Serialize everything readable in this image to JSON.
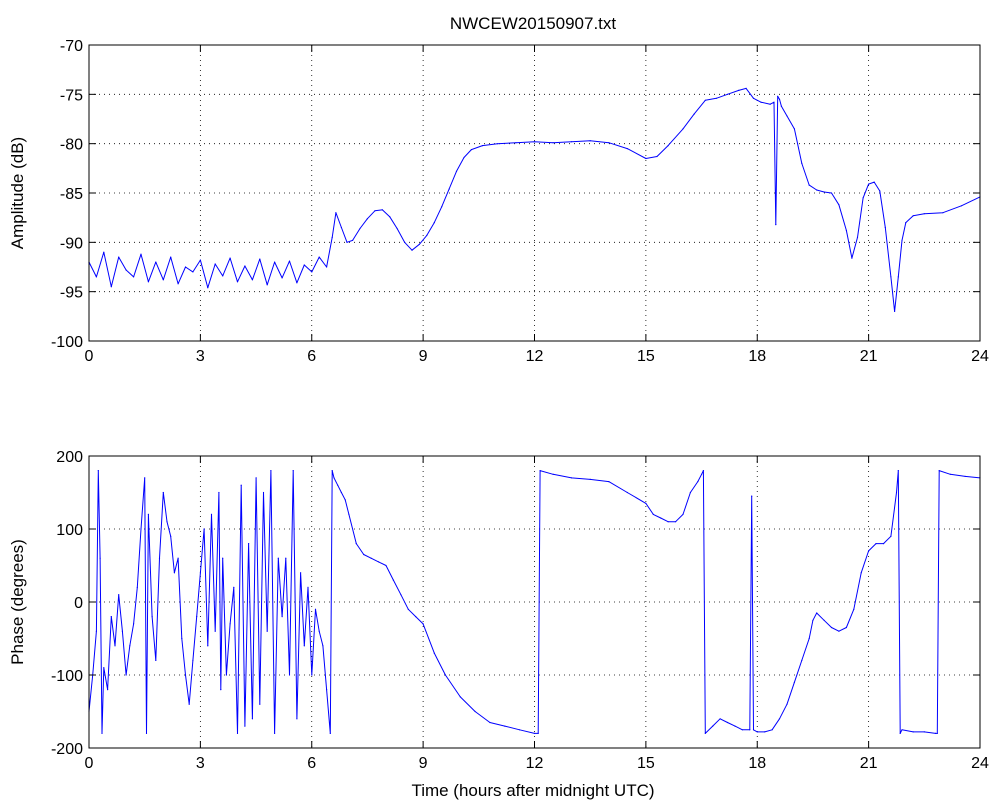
{
  "figure": {
    "title": "NWCEW20150907.txt",
    "xlabel": "Time (hours after midnight UTC)"
  },
  "chart_data": [
    {
      "type": "line",
      "title": "NWCEW20150907.txt",
      "xlabel": "",
      "ylabel": "Amplitude (dB)",
      "xlim": [
        0,
        24
      ],
      "ylim": [
        -100,
        -70
      ],
      "xticks": [
        0,
        3,
        6,
        9,
        12,
        15,
        18,
        21,
        24
      ],
      "yticks": [
        -100,
        -95,
        -90,
        -85,
        -80,
        -75,
        -70
      ],
      "grid": true,
      "line_color": "#0000ff",
      "series": [
        {
          "x": [
            0.0,
            0.2,
            0.4,
            0.6,
            0.8,
            1.0,
            1.2,
            1.4,
            1.6,
            1.8,
            2.0,
            2.2,
            2.4,
            2.6,
            2.8,
            3.0,
            3.2,
            3.4,
            3.6,
            3.8,
            4.0,
            4.2,
            4.4,
            4.6,
            4.8,
            5.0,
            5.2,
            5.4,
            5.6,
            5.8,
            6.0,
            6.2,
            6.4,
            6.55,
            6.65,
            6.8,
            6.95,
            7.1,
            7.3,
            7.5,
            7.7,
            7.9,
            8.1,
            8.3,
            8.5,
            8.7,
            8.9,
            9.1,
            9.3,
            9.5,
            9.7,
            9.9,
            10.1,
            10.3,
            10.6,
            11.0,
            11.5,
            12.0,
            12.5,
            13.0,
            13.5,
            14.0,
            14.5,
            15.0,
            15.3,
            15.6,
            16.0,
            16.3,
            16.6,
            16.9,
            17.2,
            17.5,
            17.7,
            17.9,
            18.1,
            18.35,
            18.45,
            18.5,
            18.55,
            18.6,
            18.65,
            18.8,
            19.0,
            19.2,
            19.4,
            19.6,
            19.8,
            20.0,
            20.2,
            20.4,
            20.55,
            20.7,
            20.85,
            21.0,
            21.15,
            21.3,
            21.45,
            21.6,
            21.7,
            21.8,
            21.9,
            22.0,
            22.2,
            22.5,
            23.0,
            23.5,
            24.0
          ],
          "y": [
            -92.0,
            -93.5,
            -91.0,
            -94.5,
            -91.5,
            -92.8,
            -93.5,
            -91.2,
            -94.0,
            -92.0,
            -93.8,
            -91.5,
            -94.2,
            -92.5,
            -93.0,
            -91.8,
            -94.6,
            -92.2,
            -93.4,
            -91.6,
            -94.0,
            -92.4,
            -93.8,
            -91.7,
            -94.3,
            -92.0,
            -93.6,
            -91.9,
            -94.1,
            -92.3,
            -93.0,
            -91.5,
            -92.5,
            -89.5,
            -87.0,
            -88.5,
            -90.0,
            -89.8,
            -88.6,
            -87.6,
            -86.8,
            -86.7,
            -87.4,
            -88.6,
            -90.0,
            -90.8,
            -90.2,
            -89.3,
            -88.0,
            -86.4,
            -84.6,
            -82.8,
            -81.4,
            -80.6,
            -80.2,
            -80.0,
            -79.9,
            -79.8,
            -79.9,
            -79.8,
            -79.7,
            -79.9,
            -80.5,
            -81.5,
            -81.3,
            -80.2,
            -78.5,
            -77.0,
            -75.6,
            -75.4,
            -75.0,
            -74.6,
            -74.4,
            -75.4,
            -75.8,
            -76.0,
            -75.8,
            -88.2,
            -75.2,
            -75.5,
            -76.2,
            -77.2,
            -78.5,
            -82.0,
            -84.2,
            -84.7,
            -84.9,
            -85.0,
            -86.2,
            -88.8,
            -91.6,
            -89.5,
            -85.5,
            -84.1,
            -83.9,
            -84.8,
            -88.5,
            -93.5,
            -97.0,
            -93.5,
            -89.8,
            -88.0,
            -87.3,
            -87.1,
            -87.0,
            -86.3,
            -85.4
          ]
        }
      ]
    },
    {
      "type": "line",
      "xlabel": "Time (hours after midnight UTC)",
      "ylabel": "Phase (degrees)",
      "xlim": [
        0,
        24
      ],
      "ylim": [
        -200,
        200
      ],
      "xticks": [
        0,
        3,
        6,
        9,
        12,
        15,
        18,
        21,
        24
      ],
      "yticks": [
        -200,
        -100,
        0,
        100,
        200
      ],
      "grid": true,
      "line_color": "#0000ff",
      "series": [
        {
          "x": [
            0.0,
            0.1,
            0.2,
            0.25,
            0.3,
            0.35,
            0.4,
            0.5,
            0.6,
            0.7,
            0.8,
            0.9,
            1.0,
            1.1,
            1.2,
            1.3,
            1.4,
            1.5,
            1.55,
            1.6,
            1.7,
            1.8,
            1.9,
            2.0,
            2.1,
            2.2,
            2.3,
            2.4,
            2.5,
            2.6,
            2.7,
            2.8,
            2.9,
            3.0,
            3.1,
            3.2,
            3.3,
            3.4,
            3.5,
            3.55,
            3.6,
            3.7,
            3.8,
            3.9,
            4.0,
            4.1,
            4.2,
            4.3,
            4.4,
            4.5,
            4.6,
            4.7,
            4.8,
            4.9,
            5.0,
            5.1,
            5.2,
            5.3,
            5.4,
            5.5,
            5.6,
            5.7,
            5.8,
            5.9,
            6.0,
            6.1,
            6.2,
            6.3,
            6.4,
            6.5,
            6.55,
            6.6,
            6.7,
            6.8,
            6.9,
            7.0,
            7.2,
            7.4,
            7.6,
            7.8,
            8.0,
            8.2,
            8.4,
            8.6,
            8.8,
            9.0,
            9.3,
            9.6,
            10.0,
            10.4,
            10.8,
            11.2,
            11.6,
            12.0,
            12.1,
            12.15,
            12.5,
            13.0,
            13.5,
            14.0,
            14.5,
            15.0,
            15.2,
            15.4,
            15.6,
            15.8,
            16.0,
            16.2,
            16.4,
            16.5,
            16.55,
            16.6,
            16.8,
            17.0,
            17.2,
            17.4,
            17.6,
            17.8,
            17.85,
            17.9,
            18.0,
            18.2,
            18.4,
            18.6,
            18.8,
            19.0,
            19.2,
            19.4,
            19.5,
            19.6,
            19.8,
            20.0,
            20.2,
            20.4,
            20.6,
            20.8,
            21.0,
            21.2,
            21.4,
            21.6,
            21.75,
            21.8,
            21.85,
            21.9,
            22.2,
            22.5,
            22.8,
            22.85,
            22.9,
            23.2,
            23.6,
            24.0
          ],
          "y": [
            -150,
            -100,
            -40,
            180,
            60,
            -180,
            -90,
            -120,
            -20,
            -60,
            10,
            -40,
            -100,
            -60,
            -30,
            20,
            100,
            170,
            -180,
            120,
            -20,
            -80,
            60,
            150,
            110,
            90,
            40,
            60,
            -50,
            -100,
            -140,
            -80,
            -20,
            40,
            100,
            -60,
            120,
            -40,
            150,
            -120,
            60,
            -100,
            -30,
            20,
            -180,
            160,
            -170,
            80,
            -160,
            170,
            -140,
            150,
            -40,
            180,
            -180,
            60,
            -20,
            60,
            -100,
            180,
            -160,
            40,
            -60,
            20,
            -100,
            -10,
            -40,
            -60,
            -120,
            -180,
            180,
            170,
            160,
            150,
            140,
            120,
            80,
            65,
            60,
            55,
            50,
            30,
            10,
            -10,
            -20,
            -30,
            -70,
            -100,
            -130,
            -150,
            -165,
            -170,
            -175,
            -180,
            -180,
            180,
            175,
            170,
            168,
            165,
            150,
            135,
            120,
            115,
            110,
            110,
            120,
            150,
            165,
            175,
            180,
            -180,
            -170,
            -160,
            -165,
            -170,
            -175,
            -175,
            145,
            -175,
            -178,
            -178,
            -175,
            -160,
            -140,
            -110,
            -80,
            -50,
            -25,
            -15,
            -25,
            -35,
            -40,
            -35,
            -10,
            40,
            70,
            80,
            80,
            90,
            150,
            180,
            -180,
            -175,
            -178,
            -178,
            -180,
            -180,
            180,
            175,
            172,
            170
          ]
        }
      ]
    }
  ]
}
